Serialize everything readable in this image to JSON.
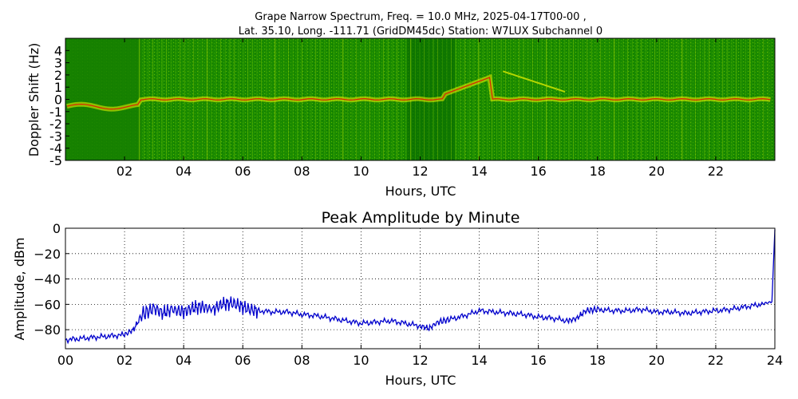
{
  "chart_data": [
    {
      "type": "heatmap",
      "title_line1": "Grape Narrow Spectrum, Freq. = 10.0 MHz, 2025-04-17T00-00 ,",
      "title_line2": "Lat.  35.10, Long. -111.71 (GridDM45dc) Station: W7LUX Subchannel 0",
      "xlabel": "Hours, UTC",
      "ylabel": "Doppler Shift (Hz)",
      "xlim": [
        0,
        24
      ],
      "ylim": [
        -5,
        5
      ],
      "xticks": [
        "02",
        "04",
        "06",
        "08",
        "10",
        "12",
        "14",
        "16",
        "18",
        "20",
        "22"
      ],
      "yticks": [
        "4",
        "3",
        "2",
        "1",
        "0",
        "-1",
        "-2",
        "-3",
        "-4",
        "-5"
      ],
      "colors": {
        "background": "#1e8c00",
        "dark_band": "#0a6e00",
        "signal": "#f2f200",
        "peak": "#e02000"
      }
    },
    {
      "type": "line",
      "title": "Peak Amplitude by Minute",
      "xlabel": "Hours, UTC",
      "ylabel": "Amplitude, dBm",
      "xlim": [
        0,
        24
      ],
      "ylim": [
        -95,
        0
      ],
      "grid": true,
      "xticks": [
        "00",
        "02",
        "04",
        "06",
        "08",
        "10",
        "12",
        "14",
        "16",
        "18",
        "20",
        "22",
        "24"
      ],
      "yticks": [
        "0",
        "−20",
        "−40",
        "−60",
        "−80"
      ],
      "line_color": "#0000cc",
      "x": [
        0,
        0.5,
        1,
        1.5,
        2,
        2.3,
        2.6,
        3,
        3.3,
        3.6,
        4,
        4.3,
        4.6,
        5,
        5.3,
        5.6,
        5.9,
        6.2,
        6.5,
        7,
        7.5,
        8,
        8.5,
        9,
        9.5,
        10,
        10.5,
        11,
        11.5,
        12,
        12.3,
        12.6,
        13,
        13.5,
        14,
        14.5,
        15,
        15.5,
        16,
        16.5,
        17,
        17.3,
        17.6,
        18,
        18.5,
        19,
        19.5,
        20,
        20.5,
        21,
        21.5,
        22,
        22.5,
        23,
        23.5,
        23.9,
        24
      ],
      "y": [
        -88,
        -87,
        -86,
        -85,
        -84,
        -80,
        -68,
        -63,
        -67,
        -64,
        -66,
        -63,
        -62,
        -64,
        -60,
        -59,
        -61,
        -64,
        -65,
        -66,
        -66,
        -68,
        -69,
        -71,
        -73,
        -75,
        -74,
        -73,
        -75,
        -77,
        -79,
        -74,
        -72,
        -69,
        -65,
        -66,
        -67,
        -68,
        -70,
        -71,
        -73,
        -71,
        -65,
        -64,
        -65,
        -65,
        -64,
        -66,
        -66,
        -67,
        -66,
        -65,
        -64,
        -62,
        -60,
        -58,
        -1
      ]
    }
  ]
}
